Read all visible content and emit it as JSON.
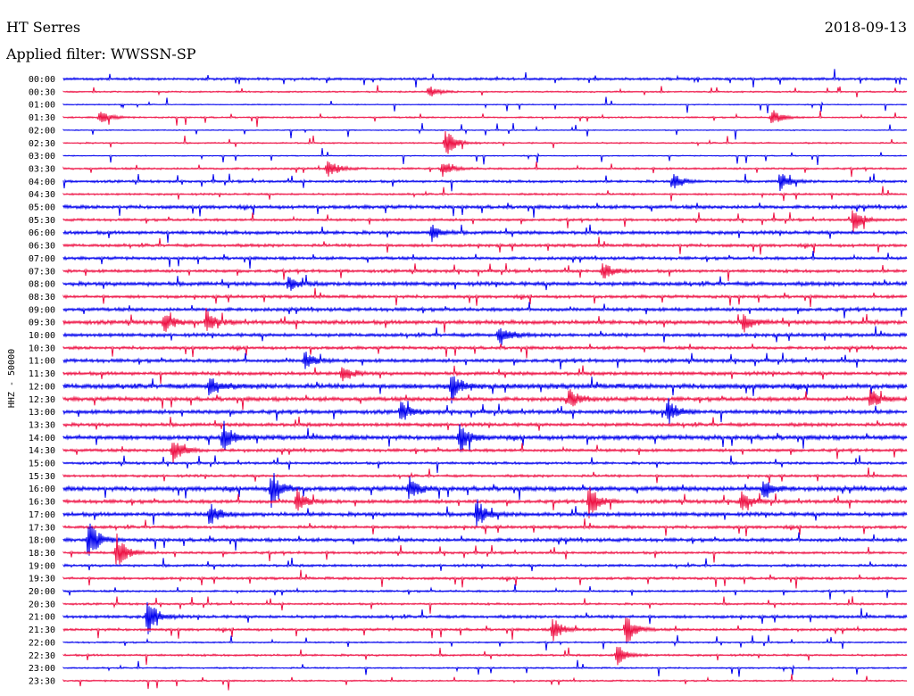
{
  "header": {
    "station": "HT Serres",
    "date": "2018-09-13",
    "filter_label": "Applied filter: WWSSN-SP"
  },
  "side_label": "HHZ - 50000",
  "colors": {
    "odd": "#0000ee",
    "even": "#ee1144"
  },
  "chart_data": {
    "type": "line",
    "title": "HT Serres",
    "xlabel": "",
    "ylabel": "HHZ - 50000",
    "grid": false,
    "legend": "none",
    "rows": [
      "00:00",
      "00:30",
      "01:00",
      "01:30",
      "02:00",
      "02:30",
      "03:00",
      "03:30",
      "04:00",
      "04:30",
      "05:00",
      "05:30",
      "06:00",
      "06:30",
      "07:00",
      "07:30",
      "08:00",
      "08:30",
      "09:00",
      "09:30",
      "10:00",
      "10:30",
      "11:00",
      "11:30",
      "12:00",
      "12:30",
      "13:00",
      "13:30",
      "14:00",
      "14:30",
      "15:00",
      "15:30",
      "16:00",
      "16:30",
      "17:00",
      "17:30",
      "18:00",
      "18:30",
      "19:00",
      "19:30",
      "20:00",
      "20:30",
      "21:00",
      "21:30",
      "22:00",
      "22:30",
      "23:00",
      "23:30"
    ],
    "series": [
      {
        "values": [
          0.5,
          0.3,
          0.2,
          0.3,
          0.2,
          0.3,
          0.2,
          0.4,
          0.5,
          0.4,
          0.7,
          0.5,
          0.7,
          0.6,
          0.6,
          0.6,
          0.8,
          0.6,
          0.7,
          0.8,
          0.7,
          0.6,
          0.7,
          0.7,
          1.0,
          0.8,
          0.8,
          0.7,
          0.9,
          0.6,
          0.5,
          0.5,
          0.9,
          0.7,
          0.8,
          0.6,
          0.7,
          0.5,
          0.5,
          0.5,
          0.4,
          0.4,
          0.6,
          0.5,
          0.3,
          0.4,
          0.3,
          0.3
        ]
      }
    ],
    "events": [
      {
        "time": "00:30",
        "minute": 13,
        "amplitude": 0.6
      },
      {
        "time": "01:30",
        "minute": 1.3,
        "amplitude": 0.8
      },
      {
        "time": "01:30",
        "minute": 25.2,
        "amplitude": 0.9
      },
      {
        "time": "02:30",
        "minute": 13.6,
        "amplitude": 1.5
      },
      {
        "time": "03:30",
        "minute": 9.4,
        "amplitude": 1.1
      },
      {
        "time": "03:30",
        "minute": 13.5,
        "amplitude": 0.9
      },
      {
        "time": "04:00",
        "minute": 21.7,
        "amplitude": 0.9
      },
      {
        "time": "04:00",
        "minute": 25.5,
        "amplitude": 1.0
      },
      {
        "time": "05:30",
        "minute": 28.1,
        "amplitude": 1.2
      },
      {
        "time": "06:00",
        "minute": 13.1,
        "amplitude": 0.8
      },
      {
        "time": "07:30",
        "minute": 19.2,
        "amplitude": 0.9
      },
      {
        "time": "08:00",
        "minute": 8.0,
        "amplitude": 0.8
      },
      {
        "time": "09:30",
        "minute": 3.6,
        "amplitude": 1.0
      },
      {
        "time": "09:30",
        "minute": 5.1,
        "amplitude": 1.1
      },
      {
        "time": "09:30",
        "minute": 24.2,
        "amplitude": 1.0
      },
      {
        "time": "10:00",
        "minute": 15.5,
        "amplitude": 1.2
      },
      {
        "time": "11:00",
        "minute": 8.6,
        "amplitude": 1.0
      },
      {
        "time": "11:30",
        "minute": 9.9,
        "amplitude": 1.0
      },
      {
        "time": "12:00",
        "minute": 5.2,
        "amplitude": 1.2
      },
      {
        "time": "12:00",
        "minute": 13.8,
        "amplitude": 1.6
      },
      {
        "time": "12:30",
        "minute": 18.0,
        "amplitude": 1.0
      },
      {
        "time": "12:30",
        "minute": 28.7,
        "amplitude": 1.1
      },
      {
        "time": "13:00",
        "minute": 12.0,
        "amplitude": 1.0
      },
      {
        "time": "13:00",
        "minute": 21.5,
        "amplitude": 1.4
      },
      {
        "time": "14:00",
        "minute": 5.7,
        "amplitude": 1.5
      },
      {
        "time": "14:00",
        "minute": 14.1,
        "amplitude": 1.5
      },
      {
        "time": "14:30",
        "minute": 3.9,
        "amplitude": 1.6
      },
      {
        "time": "16:00",
        "minute": 7.4,
        "amplitude": 2.0
      },
      {
        "time": "16:00",
        "minute": 12.3,
        "amplitude": 1.2
      },
      {
        "time": "16:00",
        "minute": 24.9,
        "amplitude": 1.2
      },
      {
        "time": "16:30",
        "minute": 8.3,
        "amplitude": 1.3
      },
      {
        "time": "16:30",
        "minute": 18.7,
        "amplitude": 1.8
      },
      {
        "time": "16:30",
        "minute": 24.1,
        "amplitude": 1.2
      },
      {
        "time": "17:00",
        "minute": 5.2,
        "amplitude": 1.1
      },
      {
        "time": "17:00",
        "minute": 14.7,
        "amplitude": 1.5
      },
      {
        "time": "18:00",
        "minute": 0.9,
        "amplitude": 2.1
      },
      {
        "time": "18:30",
        "minute": 1.9,
        "amplitude": 1.9
      },
      {
        "time": "21:00",
        "minute": 3.0,
        "amplitude": 1.9
      },
      {
        "time": "21:30",
        "minute": 17.4,
        "amplitude": 1.3
      },
      {
        "time": "21:30",
        "minute": 20.0,
        "amplitude": 1.6
      },
      {
        "time": "22:30",
        "minute": 19.7,
        "amplitude": 1.1
      }
    ]
  }
}
